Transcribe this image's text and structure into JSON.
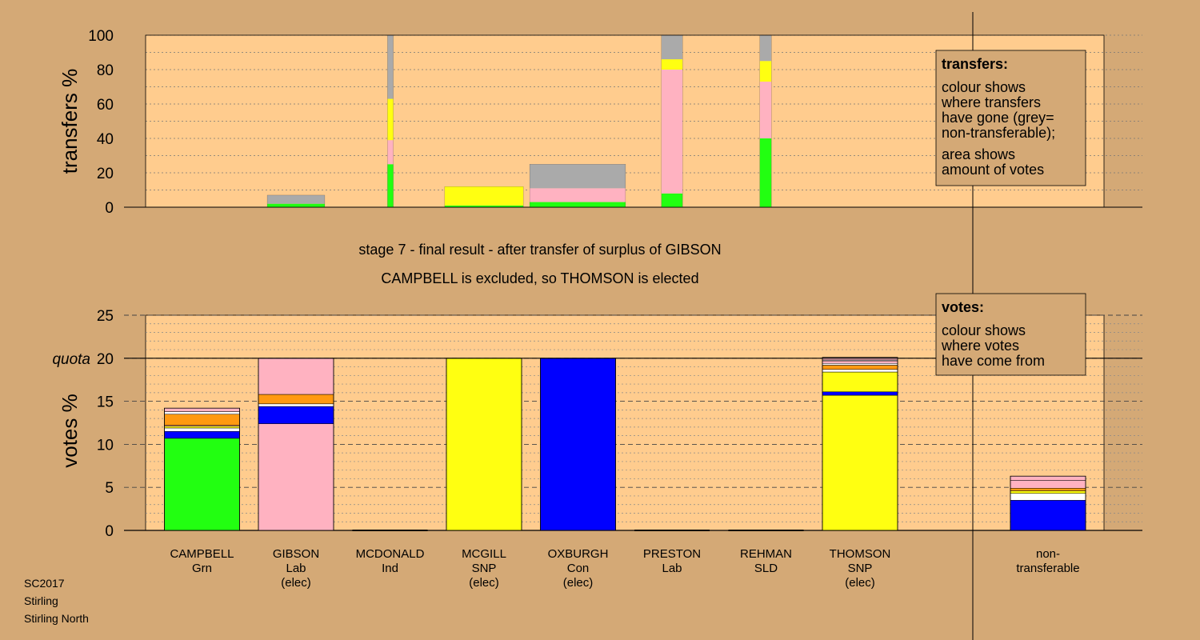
{
  "stage": {
    "line1": "stage 7 - final result - after transfer of surplus of GIBSON",
    "line2": "CAMPBELL is excluded, so THOMSON is elected"
  },
  "footer": [
    "SC2017",
    "Stirling",
    "Stirling North"
  ],
  "colors": {
    "plot_bg": "#ffcc8e",
    "page_bg": "#d4a976",
    "green": "#22ff11",
    "pink": "#ffb2c1",
    "yellow": "#ffff11",
    "blue": "#0000ff",
    "grey": "#aaaaaa",
    "orange": "#ff9911",
    "white": "#ffffff"
  },
  "chart_data": [
    {
      "type": "bar",
      "id": "transfers",
      "ylabel": "transfers %",
      "ylim": [
        0,
        100
      ],
      "yticks": [
        0,
        20,
        40,
        60,
        80,
        100
      ],
      "grid": "dotted every 10",
      "legend": {
        "position": "top-right",
        "title": "transfers:",
        "lines1": [
          "colour shows",
          "where transfers",
          "have gone (grey=",
          "non-transferable);"
        ],
        "lines2": [
          "area shows",
          "amount of votes"
        ]
      },
      "bars": [
        {
          "candidate": "GIBSON",
          "width_share": 0.06,
          "segments": [
            {
              "color": "green",
              "value": 2
            },
            {
              "color": "grey",
              "value": 5
            }
          ]
        },
        {
          "candidate": "MCDONALD",
          "width_share": 0.006,
          "segments": [
            {
              "color": "green",
              "value": 25
            },
            {
              "color": "pink",
              "value": 14
            },
            {
              "color": "yellow",
              "value": 24
            },
            {
              "color": "grey",
              "value": 37
            }
          ]
        },
        {
          "candidate": "MCGILL",
          "width_share": 0.082,
          "segments": [
            {
              "color": "green",
              "value": 1
            },
            {
              "color": "yellow",
              "value": 11
            }
          ]
        },
        {
          "candidate": "OXBURGH",
          "width_share": 0.1,
          "segments": [
            {
              "color": "green",
              "value": 3
            },
            {
              "color": "pink",
              "value": 8
            },
            {
              "color": "grey",
              "value": 14
            }
          ]
        },
        {
          "candidate": "PRESTON",
          "width_share": 0.022,
          "segments": [
            {
              "color": "green",
              "value": 8
            },
            {
              "color": "pink",
              "value": 72
            },
            {
              "color": "yellow",
              "value": 6
            },
            {
              "color": "grey",
              "value": 14
            }
          ]
        },
        {
          "candidate": "REHMAN",
          "width_share": 0.012,
          "segments": [
            {
              "color": "green",
              "value": 40
            },
            {
              "color": "pink",
              "value": 33
            },
            {
              "color": "yellow",
              "value": 12
            },
            {
              "color": "grey",
              "value": 15
            }
          ]
        }
      ]
    },
    {
      "type": "bar",
      "id": "votes",
      "ylabel": "votes %",
      "ylim": [
        0,
        25
      ],
      "yticks": [
        0,
        5,
        10,
        15,
        20,
        25
      ],
      "quota": 20,
      "quota_label": "quota",
      "grid": "dotted every 1, dashed every 5",
      "legend": {
        "position": "top-right",
        "title": "votes:",
        "lines": [
          "colour shows",
          "where votes",
          "have come from"
        ]
      },
      "candidates": [
        {
          "name": "CAMPBELL",
          "party": "Grn",
          "elected": "",
          "segments": [
            {
              "color": "green",
              "value": 10.7
            },
            {
              "color": "blue",
              "value": 0.8
            },
            {
              "color": "white",
              "value": 0.4
            },
            {
              "color": "yellow",
              "value": 0.2
            },
            {
              "color": "pink",
              "value": 0.1
            },
            {
              "color": "orange",
              "value": 1.3
            },
            {
              "color": "white",
              "value": 0.3
            },
            {
              "color": "pink",
              "value": 0.4
            }
          ]
        },
        {
          "name": "GIBSON",
          "party": "Lab",
          "elected": "(elec)",
          "segments": [
            {
              "color": "pink",
              "value": 12.4
            },
            {
              "color": "blue",
              "value": 2.0
            },
            {
              "color": "white",
              "value": 0.3
            },
            {
              "color": "orange",
              "value": 1.1
            },
            {
              "color": "pink",
              "value": 4.2
            }
          ]
        },
        {
          "name": "MCDONALD",
          "party": "Ind",
          "elected": "",
          "segments": []
        },
        {
          "name": "MCGILL",
          "party": "SNP",
          "elected": "(elec)",
          "segments": [
            {
              "color": "yellow",
              "value": 20
            }
          ]
        },
        {
          "name": "OXBURGH",
          "party": "Con",
          "elected": "(elec)",
          "segments": [
            {
              "color": "blue",
              "value": 20
            }
          ]
        },
        {
          "name": "PRESTON",
          "party": "Lab",
          "elected": "",
          "segments": []
        },
        {
          "name": "REHMAN",
          "party": "SLD",
          "elected": "",
          "segments": []
        },
        {
          "name": "THOMSON",
          "party": "SNP",
          "elected": "(elec)",
          "segments": [
            {
              "color": "yellow",
              "value": 15.7
            },
            {
              "color": "blue",
              "value": 0.4
            },
            {
              "color": "yellow",
              "value": 2.3
            },
            {
              "color": "white",
              "value": 0.3
            },
            {
              "color": "orange",
              "value": 0.5
            },
            {
              "color": "white",
              "value": 0.2
            },
            {
              "color": "pink",
              "value": 0.3
            },
            {
              "color": "white",
              "value": 0.1
            },
            {
              "color": "pink",
              "value": 0.3
            }
          ]
        }
      ],
      "nontransferable": {
        "label1": "non-",
        "label2": "transferable",
        "segments": [
          {
            "color": "blue",
            "value": 3.5
          },
          {
            "color": "white",
            "value": 0.8
          },
          {
            "color": "yellow",
            "value": 0.3
          },
          {
            "color": "orange",
            "value": 0.3
          },
          {
            "color": "pink",
            "value": 0.9
          },
          {
            "color": "pink",
            "value": 0.5
          }
        ]
      }
    }
  ]
}
